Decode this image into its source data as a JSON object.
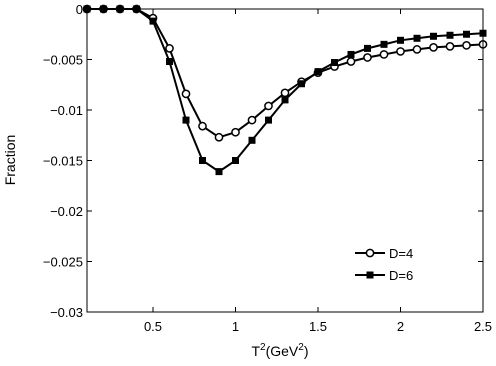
{
  "chart_data": {
    "type": "line",
    "xlabel_main": "T",
    "xlabel_sup1": "2",
    "xlabel_mid": "(GeV",
    "xlabel_sup2": "2",
    "xlabel_end": ")",
    "ylabel": "Fraction",
    "xlim": [
      0.1,
      2.5
    ],
    "ylim": [
      -0.03,
      0
    ],
    "grid": false,
    "legend_position": "right-middle",
    "x_ticks": [
      0.5,
      1,
      1.5,
      2,
      2.5
    ],
    "x_tick_labels": [
      "0.5",
      "1",
      "1.5",
      "2",
      "2.5"
    ],
    "y_ticks": [
      0,
      -0.005,
      -0.01,
      -0.015,
      -0.02,
      -0.025,
      -0.03
    ],
    "y_tick_labels": [
      "0",
      "−0.005",
      "−0.01",
      "−0.015",
      "−0.02",
      "−0.025",
      "−0.03"
    ],
    "x": [
      0.1,
      0.2,
      0.3,
      0.4,
      0.5,
      0.6,
      0.7,
      0.8,
      0.9,
      1.0,
      1.1,
      1.2,
      1.3,
      1.4,
      1.5,
      1.6,
      1.7,
      1.8,
      1.9,
      2.0,
      2.1,
      2.2,
      2.3,
      2.4,
      2.5
    ],
    "series": [
      {
        "name": "D=4",
        "marker": "circle",
        "color": "#000000",
        "values": [
          0,
          0,
          0,
          0,
          -0.0009,
          -0.0039,
          -0.0084,
          -0.0116,
          -0.0127,
          -0.0122,
          -0.011,
          -0.0096,
          -0.0083,
          -0.0072,
          -0.0063,
          -0.0057,
          -0.0052,
          -0.0048,
          -0.0045,
          -0.0042,
          -0.004,
          -0.0038,
          -0.0037,
          -0.0036,
          -0.0035
        ]
      },
      {
        "name": "D=6",
        "marker": "square",
        "color": "#000000",
        "values": [
          0,
          0,
          0,
          0,
          -0.0012,
          -0.0052,
          -0.011,
          -0.015,
          -0.0161,
          -0.015,
          -0.013,
          -0.011,
          -0.009,
          -0.0074,
          -0.0062,
          -0.0053,
          -0.0045,
          -0.0039,
          -0.0035,
          -0.0031,
          -0.0029,
          -0.0027,
          -0.0026,
          -0.0025,
          -0.0024
        ]
      }
    ]
  }
}
